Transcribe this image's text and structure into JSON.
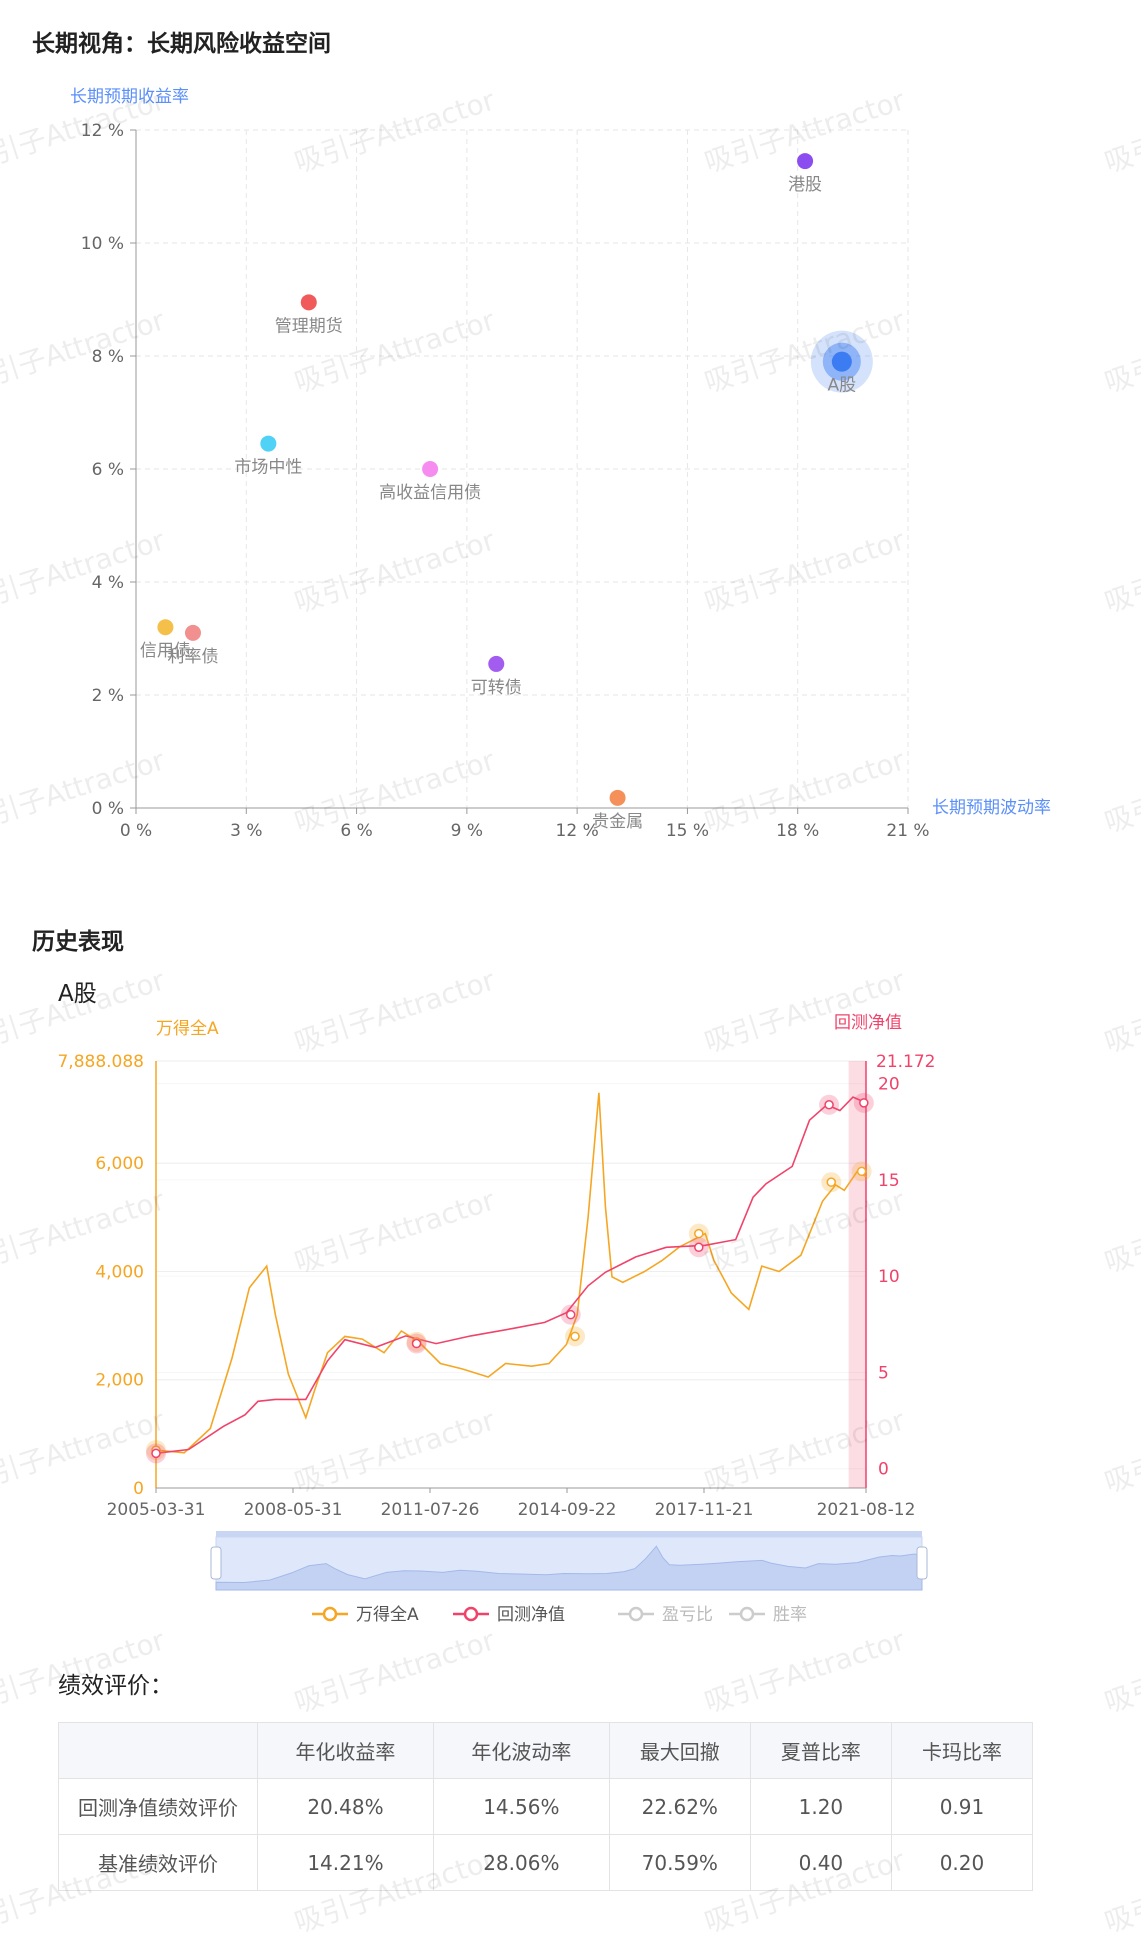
{
  "section1": {
    "title": "长期视角：长期风险收益空间"
  },
  "section2": {
    "title": "历史表现",
    "subtitle": "A股"
  },
  "perf": {
    "title": "绩效评价：",
    "headers": [
      "",
      "年化收益率",
      "年化波动率",
      "最大回撤",
      "夏普比率",
      "卡玛比率"
    ],
    "rows": [
      [
        "回测净值绩效评价",
        "20.48%",
        "14.56%",
        "22.62%",
        "1.20",
        "0.91"
      ],
      [
        "基准绩效评价",
        "14.21%",
        "28.06%",
        "70.59%",
        "0.40",
        "0.20"
      ]
    ]
  },
  "watermark": "吸引子Attractor",
  "chart_data": [
    {
      "type": "scatter",
      "title": "",
      "xlabel": "长期预期波动率",
      "ylabel": "长期预期收益率",
      "xlim": [
        0,
        21
      ],
      "ylim": [
        0,
        12
      ],
      "x_ticks": [
        "0 %",
        "3 %",
        "6 %",
        "9 %",
        "12 %",
        "15 %",
        "18 %",
        "21 %"
      ],
      "y_ticks": [
        "0 %",
        "2 %",
        "4 %",
        "6 %",
        "8 %",
        "10 %",
        "12 %"
      ],
      "grid": true,
      "points": [
        {
          "name": "港股",
          "x": 18.2,
          "y": 11.45,
          "color": "#8b4cf0"
        },
        {
          "name": "A股",
          "x": 19.2,
          "y": 7.9,
          "color": "#3b7cf2",
          "highlight": true
        },
        {
          "name": "管理期货",
          "x": 4.7,
          "y": 8.95,
          "color": "#f05a5a"
        },
        {
          "name": "市场中性",
          "x": 3.6,
          "y": 6.45,
          "color": "#4fd2f5"
        },
        {
          "name": "高收益信用债",
          "x": 8.0,
          "y": 6.0,
          "color": "#f78cf0"
        },
        {
          "name": "信用债",
          "x": 0.8,
          "y": 3.2,
          "color": "#f5c04a"
        },
        {
          "name": "利率债",
          "x": 1.55,
          "y": 3.1,
          "color": "#f28f8f"
        },
        {
          "name": "可转债",
          "x": 9.8,
          "y": 2.55,
          "color": "#a35cf0"
        },
        {
          "name": "贵金属",
          "x": 13.1,
          "y": 0.18,
          "color": "#f5905a"
        }
      ]
    },
    {
      "type": "line",
      "title": "A股",
      "x_ticks": [
        "2005-03-31",
        "2008-05-31",
        "2011-07-26",
        "2014-09-22",
        "2017-11-21",
        "2021-08-12"
      ],
      "x_range": [
        2005.25,
        2021.6
      ],
      "y_left": {
        "label": "万得全A",
        "max_label": "7,888.088",
        "ticks": [
          "0",
          "2,000",
          "4,000",
          "6,000"
        ],
        "range": [
          0,
          7888.088
        ]
      },
      "y_right": {
        "label": "回测净值",
        "max_label": "21.172",
        "ticks": [
          "0",
          "5",
          "10",
          "15",
          "20"
        ],
        "range": [
          -1,
          21.172
        ]
      },
      "legend": [
        "万得全A",
        "回测净值",
        "盈亏比",
        "胜率"
      ],
      "legend_colors": [
        "#f5a623",
        "#f0436a",
        "#cccccc",
        "#cccccc"
      ],
      "series": [
        {
          "name": "万得全A",
          "axis": "left",
          "color": "#f5a623",
          "x": [
            2005.25,
            2005.9,
            2006.5,
            2007.0,
            2007.4,
            2007.8,
            2008.0,
            2008.3,
            2008.7,
            2008.9,
            2009.2,
            2009.6,
            2010.0,
            2010.5,
            2010.9,
            2011.3,
            2011.8,
            2012.3,
            2012.9,
            2013.3,
            2013.9,
            2014.3,
            2014.7,
            2014.95,
            2015.2,
            2015.45,
            2015.6,
            2015.75,
            2016.0,
            2016.5,
            2016.9,
            2017.3,
            2017.9,
            2018.1,
            2018.5,
            2018.9,
            2019.2,
            2019.6,
            2020.1,
            2020.6,
            2020.9,
            2021.1,
            2021.4,
            2021.6
          ],
          "y": [
            700,
            650,
            1100,
            2400,
            3700,
            4100,
            3200,
            2100,
            1300,
            1800,
            2500,
            2800,
            2750,
            2500,
            2900,
            2700,
            2300,
            2200,
            2050,
            2300,
            2250,
            2300,
            2650,
            3200,
            5000,
            7300,
            5200,
            3900,
            3800,
            4000,
            4200,
            4450,
            4700,
            4200,
            3600,
            3300,
            4100,
            4000,
            4300,
            5300,
            5600,
            5500,
            5850,
            5750
          ]
        },
        {
          "name": "回测净值",
          "axis": "right",
          "color": "#f0436a",
          "x": [
            2005.25,
            2006.0,
            2006.8,
            2007.3,
            2007.6,
            2008.0,
            2008.7,
            2009.2,
            2009.6,
            2010.3,
            2011.0,
            2011.7,
            2012.5,
            2013.5,
            2014.2,
            2014.7,
            2015.2,
            2015.6,
            2016.3,
            2017.0,
            2017.9,
            2018.6,
            2019.0,
            2019.3,
            2019.9,
            2020.3,
            2020.7,
            2021.0,
            2021.3,
            2021.6
          ],
          "y": [
            0.8,
            1.0,
            2.2,
            2.8,
            3.5,
            3.6,
            3.6,
            5.6,
            6.7,
            6.3,
            6.9,
            6.5,
            6.9,
            7.3,
            7.6,
            8.1,
            9.5,
            10.2,
            11.0,
            11.5,
            11.6,
            11.9,
            14.1,
            14.8,
            15.7,
            18.1,
            18.9,
            18.6,
            19.3,
            19.0
          ]
        }
      ],
      "markers_left": [
        {
          "x": 2005.25,
          "y": 700
        },
        {
          "x": 2011.25,
          "y": 2700
        },
        {
          "x": 2014.9,
          "y": 2800
        },
        {
          "x": 2017.75,
          "y": 4700
        },
        {
          "x": 2020.8,
          "y": 5650
        },
        {
          "x": 2021.5,
          "y": 5850
        }
      ],
      "markers_right": [
        {
          "x": 2005.25,
          "y": 0.8
        },
        {
          "x": 2011.25,
          "y": 6.5
        },
        {
          "x": 2014.8,
          "y": 8.0
        },
        {
          "x": 2017.75,
          "y": 11.5
        },
        {
          "x": 2020.75,
          "y": 18.9
        },
        {
          "x": 2021.55,
          "y": 19.0
        }
      ]
    }
  ]
}
